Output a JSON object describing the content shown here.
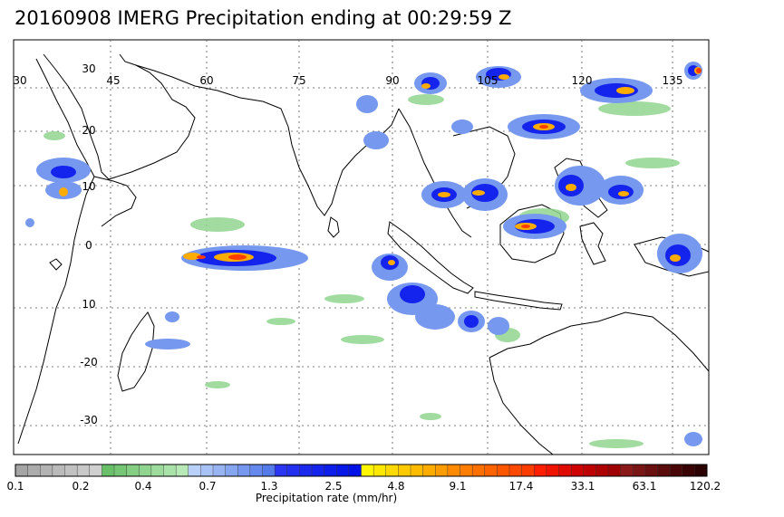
{
  "title": "20160908 IMERG Precipitation ending at 00:29:59 Z",
  "map": {
    "lon_labels": [
      "30",
      "45",
      "60",
      "75",
      "90",
      "105",
      "120",
      "135"
    ],
    "lat_labels": [
      "30",
      "20",
      "10",
      "0",
      "10",
      "-20",
      "-30"
    ],
    "gridlines": true,
    "region": "Indian Ocean / Maritime Continent"
  },
  "colorbar": {
    "title": "Precipitation rate (mm/hr)",
    "tick_labels": [
      "0.1",
      "0.2",
      "0.4",
      "0.7",
      "1.3",
      "2.5",
      "4.8",
      "9.1",
      "17.4",
      "33.1",
      "63.1",
      "120.2"
    ],
    "colors": [
      "#a5a5a5",
      "#acacac",
      "#b3b3b3",
      "#bababa",
      "#c1c1c1",
      "#c8c8c8",
      "#cfcfcf",
      "#69c068",
      "#76c775",
      "#83ce82",
      "#90d58f",
      "#9ddc9c",
      "#aae3a9",
      "#b7eab6",
      "#b9d0f8",
      "#a9c2f6",
      "#98b4f3",
      "#87a6f1",
      "#7698ee",
      "#6589ec",
      "#547be9",
      "#2a36f2",
      "#2330f0",
      "#1c2aee",
      "#1524ec",
      "#0e1eea",
      "#0718e8",
      "#0012e6",
      "#fff700",
      "#ffe800",
      "#ffd900",
      "#ffca00",
      "#ffbb00",
      "#ffac00",
      "#ff9d00",
      "#ff8a00",
      "#ff7d00",
      "#ff7000",
      "#ff6300",
      "#ff5600",
      "#ff4900",
      "#ff3c00",
      "#ff1e00",
      "#ef1400",
      "#df0a00",
      "#cf0000",
      "#bf0000",
      "#af0000",
      "#9f0000",
      "#8a1a1a",
      "#7a1515",
      "#6a1010",
      "#5a0b0b",
      "#4a0606",
      "#3a0303",
      "#2a0000"
    ]
  }
}
